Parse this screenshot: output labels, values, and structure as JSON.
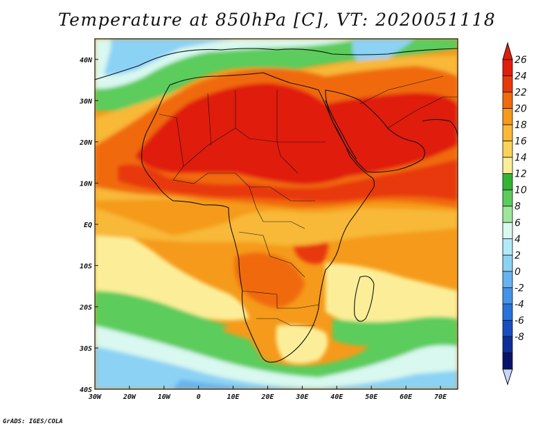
{
  "title": "Temperature at 850hPa [C], VT: 2020051118",
  "credit": "GrADS: IGES/COLA",
  "map": {
    "lon_range": [
      -30,
      75
    ],
    "lat_range": [
      -40,
      45
    ],
    "lon_ticks": [
      {
        "value": -30,
        "label": "30W"
      },
      {
        "value": -20,
        "label": "20W"
      },
      {
        "value": -10,
        "label": "10W"
      },
      {
        "value": 0,
        "label": "0"
      },
      {
        "value": 10,
        "label": "10E"
      },
      {
        "value": 20,
        "label": "20E"
      },
      {
        "value": 30,
        "label": "30E"
      },
      {
        "value": 40,
        "label": "40E"
      },
      {
        "value": 50,
        "label": "50E"
      },
      {
        "value": 60,
        "label": "60E"
      },
      {
        "value": 70,
        "label": "70E"
      }
    ],
    "lat_ticks": [
      {
        "value": 40,
        "label": "40N"
      },
      {
        "value": 30,
        "label": "30N"
      },
      {
        "value": 20,
        "label": "20N"
      },
      {
        "value": 10,
        "label": "10N"
      },
      {
        "value": 0,
        "label": "EQ"
      },
      {
        "value": -10,
        "label": "10S"
      },
      {
        "value": -20,
        "label": "20S"
      },
      {
        "value": -30,
        "label": "30S"
      },
      {
        "value": -40,
        "label": "40S"
      }
    ]
  },
  "colorbar": {
    "labels": [
      "26",
      "24",
      "22",
      "20",
      "18",
      "16",
      "14",
      "12",
      "10",
      "8",
      "6",
      "4",
      "2",
      "0",
      "-2",
      "-4",
      "-6",
      "-8"
    ],
    "colors": [
      {
        "color": "#e01e0a",
        "min": 26
      },
      {
        "color": "#e8380c",
        "min": 24,
        "max": 26
      },
      {
        "color": "#f06a0e",
        "min": 22,
        "max": 24
      },
      {
        "color": "#f59a1a",
        "min": 20,
        "max": 22
      },
      {
        "color": "#f8b838",
        "min": 18,
        "max": 20
      },
      {
        "color": "#fad25a",
        "min": 16,
        "max": 18
      },
      {
        "color": "#fcee98",
        "min": 14,
        "max": 16
      },
      {
        "color": "#34b434",
        "min": 12,
        "max": 14
      },
      {
        "color": "#5ccc5c",
        "min": 10,
        "max": 12
      },
      {
        "color": "#9ee69a",
        "min": 8,
        "max": 10
      },
      {
        "color": "#d8f8f0",
        "min": 6,
        "max": 8
      },
      {
        "color": "#b2eaf8",
        "min": 4,
        "max": 6
      },
      {
        "color": "#8cd2f4",
        "min": 2,
        "max": 4
      },
      {
        "color": "#66b4ee",
        "min": 0,
        "max": 2
      },
      {
        "color": "#4494e6",
        "min": -2,
        "max": 0
      },
      {
        "color": "#2872d8",
        "min": -4,
        "max": -2
      },
      {
        "color": "#1a4ec0",
        "min": -6,
        "max": -4
      },
      {
        "color": "#0e2e98",
        "min": -8,
        "max": -6
      },
      {
        "color": "#08146a",
        "max": -8
      }
    ],
    "top_triangle_color": "#e01e0a",
    "bottom_triangle_color": "#c8d6f8"
  }
}
